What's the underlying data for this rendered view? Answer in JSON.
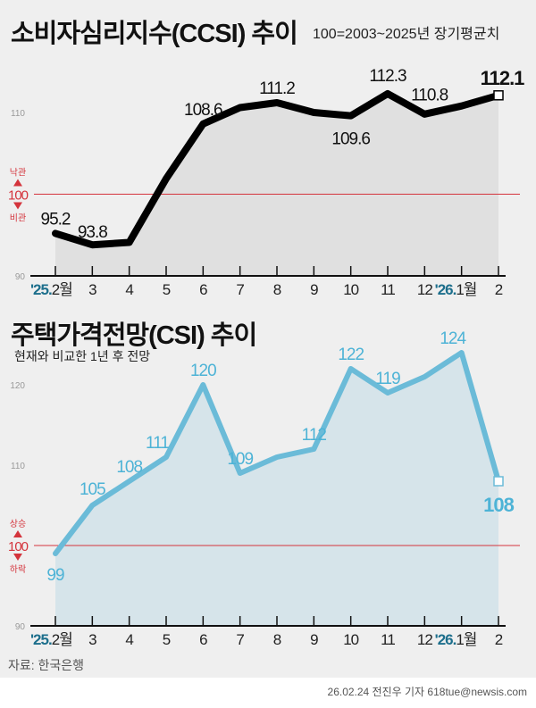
{
  "chart_data": [
    {
      "type": "line",
      "title": "소비자심리지수(CCSI) 추이",
      "subtitle": "100=2003~2025년 장기평균치",
      "categories": [
        "2월",
        "3",
        "4",
        "5",
        "6",
        "7",
        "8",
        "9",
        "10",
        "11",
        "12",
        "1월",
        "2"
      ],
      "year_markers": {
        "0": "'25.",
        "11": "'26."
      },
      "values": [
        95.2,
        93.8,
        94.1,
        101.9,
        108.6,
        110.6,
        111.2,
        110.0,
        109.6,
        112.3,
        109.8,
        110.8,
        112.1
      ],
      "labels": {
        "0": "95.2",
        "1": "93.8",
        "4": "108.6",
        "6": "111.2",
        "8": "109.6",
        "9": "112.3",
        "11": "110.8",
        "12": "112.1"
      },
      "ylim": [
        90,
        113
      ],
      "yticks": [
        "90",
        "110"
      ],
      "reference": {
        "value": "100",
        "above": "낙관",
        "below": "비관"
      },
      "color": "#000000",
      "fill": "#e0e0e0"
    },
    {
      "type": "area",
      "title": "주택가격전망(CSI) 추이",
      "subtitle": "현재와 비교한 1년 후 전망",
      "categories": [
        "2월",
        "3",
        "4",
        "5",
        "6",
        "7",
        "8",
        "9",
        "10",
        "11",
        "12",
        "1월",
        "2"
      ],
      "year_markers": {
        "0": "'25.",
        "11": "'26."
      },
      "values": [
        99,
        105,
        108,
        111,
        120,
        109,
        111,
        112,
        122,
        119,
        121,
        124,
        108
      ],
      "labels": {
        "0": "99",
        "1": "105",
        "2": "108",
        "3": "111",
        "4": "120",
        "5": "109",
        "7": "112",
        "8": "122",
        "9": "119",
        "11": "124",
        "12": "108"
      },
      "ylim": [
        90,
        125
      ],
      "yticks": [
        "90",
        "110",
        "120"
      ],
      "reference": {
        "value": "100",
        "above": "상승",
        "below": "하락"
      },
      "color": "#6bbbd8",
      "fill": "#d6e4ea"
    }
  ],
  "colors": {
    "reference": "#d4343c",
    "year_marker": "#1d6f8c",
    "label_blue": "#4db3d6"
  },
  "source": "자료: 한국은행",
  "credit": "26.02.24 전진우 기자 618tue@newsis.com"
}
